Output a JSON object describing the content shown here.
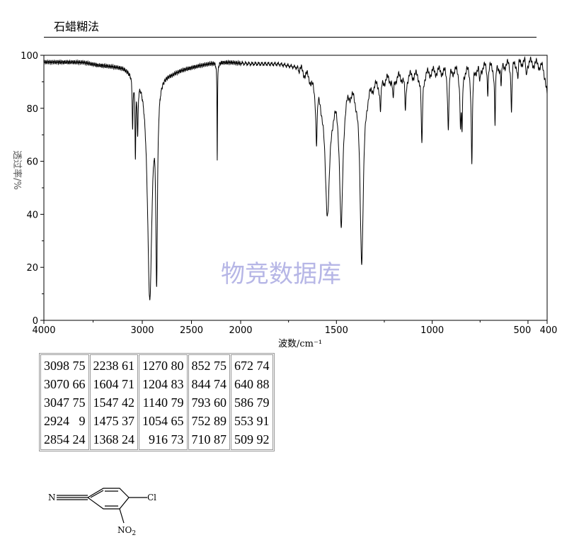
{
  "header": {
    "title": "石蜡糊法"
  },
  "watermark": "物竞数据库",
  "chart_data": {
    "type": "line",
    "title": "",
    "xlabel": "波数/cm⁻¹",
    "ylabel": "透过率/%",
    "xlim": [
      4000,
      400
    ],
    "ylim": [
      0,
      100
    ],
    "x_ticks": [
      {
        "v": 4000,
        "label": "4000"
      },
      {
        "v": 3000,
        "label": "3000"
      },
      {
        "v": 2500,
        "label": "2500"
      },
      {
        "v": 2000,
        "label": "2000"
      },
      {
        "v": 1500,
        "label": "1500"
      },
      {
        "v": 1000,
        "label": "1000"
      },
      {
        "v": 500,
        "label": "500"
      },
      {
        "v": 400,
        "label": "400"
      }
    ],
    "y_ticks": [
      0,
      20,
      40,
      60,
      80,
      100
    ],
    "grid": false,
    "line_color": "#000000",
    "baseline": [
      [
        4000,
        97.5
      ],
      [
        3600,
        97.5
      ],
      [
        3450,
        96.5
      ],
      [
        3200,
        96
      ],
      [
        3130,
        95
      ],
      [
        2700,
        94
      ],
      [
        2600,
        95
      ],
      [
        2400,
        96.5
      ],
      [
        2250,
        97.5
      ],
      [
        2100,
        97.5
      ],
      [
        1950,
        97
      ],
      [
        1800,
        97
      ],
      [
        1700,
        96
      ],
      [
        1640,
        93
      ],
      [
        1615,
        90
      ],
      [
        1520,
        89
      ],
      [
        1400,
        90
      ],
      [
        1320,
        90
      ],
      [
        1280,
        91
      ],
      [
        1230,
        92
      ],
      [
        1100,
        93
      ],
      [
        1000,
        94
      ],
      [
        900,
        95
      ],
      [
        750,
        96
      ],
      [
        600,
        97
      ],
      [
        520,
        98
      ],
      [
        470,
        97
      ],
      [
        430,
        96
      ],
      [
        410,
        92
      ],
      [
        400,
        85
      ]
    ],
    "peaks": [
      {
        "x": 3098,
        "y": 75,
        "w": 5
      },
      {
        "x": 3070,
        "y": 66,
        "w": 5
      },
      {
        "x": 3047,
        "y": 75,
        "w": 6
      },
      {
        "x": 2924,
        "y": 9,
        "w": 28
      },
      {
        "x": 2854,
        "y": 24,
        "w": 10
      },
      {
        "x": 2238,
        "y": 61,
        "w": 3
      },
      {
        "x": 1604,
        "y": 71,
        "w": 4
      },
      {
        "x": 1547,
        "y": 42,
        "w": 16
      },
      {
        "x": 1475,
        "y": 37,
        "w": 10
      },
      {
        "x": 1368,
        "y": 24,
        "w": 11
      },
      {
        "x": 1270,
        "y": 80,
        "w": 4
      },
      {
        "x": 1204,
        "y": 83,
        "w": 4
      },
      {
        "x": 1140,
        "y": 79,
        "w": 4
      },
      {
        "x": 1054,
        "y": 65,
        "w": 4
      },
      {
        "x": 916,
        "y": 73,
        "w": 4
      },
      {
        "x": 852,
        "y": 75,
        "w": 4
      },
      {
        "x": 844,
        "y": 74,
        "w": 3
      },
      {
        "x": 793,
        "y": 60,
        "w": 4
      },
      {
        "x": 752,
        "y": 89,
        "w": 3
      },
      {
        "x": 710,
        "y": 87,
        "w": 3
      },
      {
        "x": 672,
        "y": 74,
        "w": 3
      },
      {
        "x": 640,
        "y": 88,
        "w": 3
      },
      {
        "x": 586,
        "y": 79,
        "w": 3
      },
      {
        "x": 553,
        "y": 91,
        "w": 3
      },
      {
        "x": 509,
        "y": 92,
        "w": 3
      }
    ]
  },
  "peak_table": [
    [
      "3098 75",
      "3070 66",
      "3047 75",
      "2924   9",
      "2854 24"
    ],
    [
      "2238 61",
      "1604 71",
      "1547 42",
      "1475 37",
      "1368 24"
    ],
    [
      "1270 80",
      "1204 83",
      "1140 79",
      "1054 65",
      "  916 73"
    ],
    [
      "852 75",
      "844 74",
      "793 60",
      "752 89",
      "710 87"
    ],
    [
      "672 74",
      "640 88",
      "586 79",
      "553 91",
      "509 92"
    ]
  ],
  "structure": {
    "nitrile_atom": "N",
    "chloro_label": "Cl",
    "nitro_label": "NO",
    "nitro_subscript": "2"
  }
}
